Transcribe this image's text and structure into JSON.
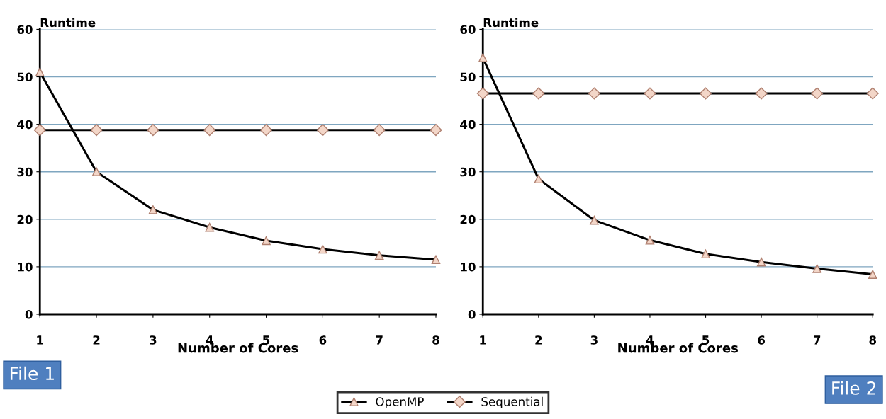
{
  "chart_data": [
    {
      "type": "line",
      "ylabel": "Runtime",
      "xlabel": "Number of Cores",
      "x": [
        1,
        2,
        3,
        4,
        5,
        6,
        7,
        8
      ],
      "xlim": [
        1,
        8
      ],
      "xticks": [
        1,
        2,
        3,
        4,
        5,
        6,
        7,
        8
      ],
      "ylim": [
        0,
        60
      ],
      "yticks": [
        0,
        10,
        20,
        30,
        40,
        50,
        60
      ],
      "grid": "y",
      "legend": "bottom",
      "annotations": [
        "File 1"
      ],
      "series": [
        {
          "name": "OpenMP",
          "color": "#000000",
          "marker": "triangle",
          "values": [
            51,
            30,
            22,
            18.3,
            15.5,
            13.7,
            12.4,
            11.5
          ]
        },
        {
          "name": "Sequential",
          "color": "#000000",
          "marker": "diamond",
          "values": [
            38.8,
            38.8,
            38.8,
            38.8,
            38.8,
            38.8,
            38.8,
            38.8
          ]
        }
      ]
    },
    {
      "type": "line",
      "ylabel": "Runtime",
      "xlabel": "Number of Cores",
      "x": [
        1,
        2,
        3,
        4,
        5,
        6,
        7,
        8
      ],
      "xlim": [
        1,
        8
      ],
      "xticks": [
        1,
        2,
        3,
        4,
        5,
        6,
        7,
        8
      ],
      "ylim": [
        0,
        60
      ],
      "yticks": [
        0,
        10,
        20,
        30,
        40,
        50,
        60
      ],
      "grid": "y",
      "legend": "bottom",
      "annotations": [
        "File 2"
      ],
      "series": [
        {
          "name": "OpenMP",
          "color": "#000000",
          "marker": "triangle",
          "values": [
            54,
            28.5,
            19.8,
            15.6,
            12.7,
            11,
            9.6,
            8.4
          ]
        },
        {
          "name": "Sequential",
          "color": "#000000",
          "marker": "diamond",
          "values": [
            46.5,
            46.5,
            46.5,
            46.5,
            46.5,
            46.5,
            46.5,
            46.5
          ]
        }
      ]
    }
  ]
}
